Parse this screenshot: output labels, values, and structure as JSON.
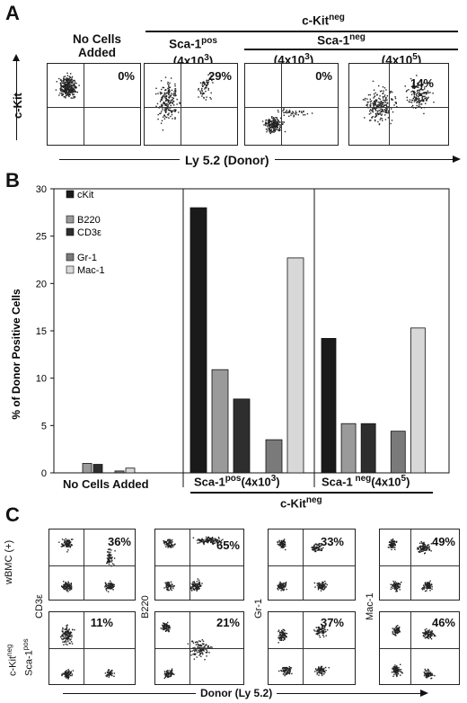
{
  "panel_a": {
    "letter": "A",
    "kit_neg_header": "c-Kit",
    "kit_neg_sup": "neg",
    "sca_neg_header": "Sca-1",
    "sca_neg_sup": "neg",
    "y_axis_label": "c-Kit",
    "x_axis_label": "Ly 5.2 (Donor)",
    "plots": [
      {
        "title_line1": "No Cells",
        "title_line2": "Added",
        "percent": "0%"
      },
      {
        "title_line1": "Sca-1",
        "title_sup": "pos",
        "title_line2": "(4x10",
        "title_exp": "3",
        "title_close": ")",
        "percent": "29%"
      },
      {
        "title_line2": "(4x10",
        "title_exp": "3",
        "title_close": ")",
        "percent": "0%"
      },
      {
        "title_line2": "(4x10",
        "title_exp": "5",
        "title_close": ")",
        "percent": "14%"
      }
    ]
  },
  "panel_b": {
    "letter": "B",
    "group_labels": {
      "no_cells": "No Cells Added",
      "sca_pos": "Sca-1",
      "sca_pos_sup": "pos",
      "sca_pos_dose": "(4x10",
      "sca_pos_exp": "3",
      "sca_neg": "Sca-1",
      "sca_neg_sup": " neg",
      "sca_neg_dose": "(4x10",
      "sca_neg_exp": "5",
      "close": ")"
    },
    "kit_neg_label": "c-Kit",
    "kit_neg_sup": "neg",
    "legend_groups": [
      [
        "cKit"
      ],
      [
        "B220",
        "CD3ε"
      ],
      [
        "Gr-1",
        "Mac-1"
      ]
    ],
    "chart_data": {
      "type": "bar",
      "ylabel": "% of Donor Positive Cells",
      "ylim": [
        0,
        30
      ],
      "yticks": [
        0,
        5,
        10,
        15,
        20,
        25,
        30
      ],
      "categories": [
        "No Cells Added",
        "Sca-1pos(4x10^3)",
        "Sca-1neg(4x10^5)"
      ],
      "series": [
        {
          "name": "cKit",
          "values": [
            0,
            28.0,
            14.2
          ],
          "color": "#1a1a1a"
        },
        {
          "name": "B220",
          "values": [
            1.0,
            10.9,
            5.2
          ],
          "color": "#9a9a9a"
        },
        {
          "name": "CD3ε",
          "values": [
            0.9,
            7.8,
            5.2
          ],
          "color": "#2e2e2e"
        },
        {
          "name": "Gr-1",
          "values": [
            0.2,
            3.5,
            4.4
          ],
          "color": "#7a7a7a"
        },
        {
          "name": "Mac-1",
          "values": [
            0.5,
            22.7,
            15.3
          ],
          "color": "#d8d8d8"
        }
      ]
    }
  },
  "panel_c": {
    "letter": "C",
    "row_labels": {
      "row1": "wBMC (+)",
      "row2_line1": "c-Kit",
      "row2_line1_sup": "neg",
      "row2_line2": "Sca-1",
      "row2_line2_sup": "pos"
    },
    "col_markers": [
      "CD3ε",
      "B220",
      "Gr-1",
      "Mac-1"
    ],
    "x_axis_label": "Donor (Ly 5.2)",
    "row1_percents": [
      "36%",
      "65%",
      "33%",
      "49%"
    ],
    "row2_percents": [
      "11%",
      "21%",
      "37%",
      "46%"
    ]
  }
}
